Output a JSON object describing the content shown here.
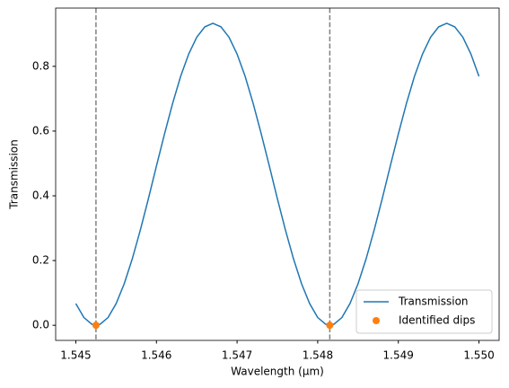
{
  "chart_data": {
    "type": "line",
    "xlabel": "Wavelength (µm)",
    "ylabel": "Transmission",
    "xlim": [
      1.54475,
      1.55025
    ],
    "ylim": [
      -0.0467,
      0.98
    ],
    "xticks": [
      1.545,
      1.546,
      1.547,
      1.548,
      1.549,
      {
        "value": 1.55,
        "label": "1.550"
      }
    ],
    "yticks": [
      {
        "value": 0,
        "label": "0.0"
      },
      0.2,
      0.4,
      0.6,
      0.8
    ],
    "legend": "lower right",
    "series": [
      {
        "name": "Transmission",
        "color": "#1f77b4",
        "kind": "line",
        "x": [
          1.545,
          1.5451,
          1.5452,
          1.5453,
          1.5454,
          1.5455,
          1.5456,
          1.5457,
          1.5458,
          1.5459,
          1.546,
          1.5461,
          1.5462,
          1.5463,
          1.5464,
          1.5465,
          1.5466,
          1.5467,
          1.5468,
          1.5469,
          1.547,
          1.5471,
          1.5472,
          1.5473,
          1.5474,
          1.5475,
          1.5476,
          1.5477,
          1.5478,
          1.5479,
          1.548,
          1.5481,
          1.5482,
          1.5483,
          1.5484,
          1.5485,
          1.5486,
          1.5487,
          1.5488,
          1.5489,
          1.549,
          1.5491,
          1.5492,
          1.5493,
          1.5494,
          1.5495,
          1.5496,
          1.5497,
          1.5498,
          1.5499,
          1.55
        ],
        "values": [
          0.067,
          0.024,
          0.003,
          0.003,
          0.024,
          0.067,
          0.128,
          0.205,
          0.294,
          0.391,
          0.492,
          0.591,
          0.685,
          0.769,
          0.838,
          0.89,
          0.922,
          0.933,
          0.922,
          0.89,
          0.838,
          0.769,
          0.685,
          0.591,
          0.492,
          0.391,
          0.294,
          0.205,
          0.128,
          0.067,
          0.024,
          0.003,
          0.003,
          0.024,
          0.067,
          0.128,
          0.205,
          0.294,
          0.391,
          0.492,
          0.591,
          0.685,
          0.769,
          0.838,
          0.89,
          0.922,
          0.933,
          0.922,
          0.89,
          0.838,
          0.769
        ]
      },
      {
        "name": "Identified dips",
        "color": "#ff7f0e",
        "kind": "points",
        "vline_color": "#808080",
        "x": [
          1.54525,
          1.54815
        ],
        "values": [
          0,
          0
        ]
      }
    ]
  }
}
